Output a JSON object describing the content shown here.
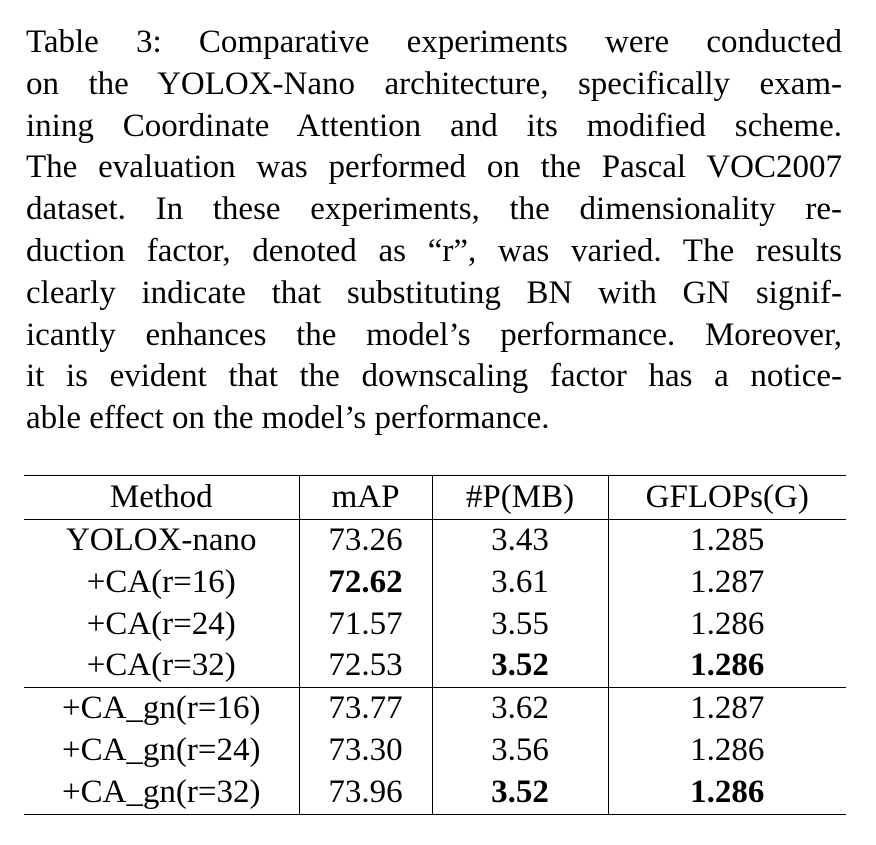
{
  "caption": {
    "lines": [
      "Table 3:  Comparative experiments were conducted",
      "on the YOLOX-Nano architecture, specifically exam-",
      "ining Coordinate Attention and its modified scheme.",
      "The evaluation was performed on the Pascal VOC2007",
      "dataset.  In these experiments, the dimensionality re-",
      "duction factor, denoted as “r”, was varied.  The results",
      "clearly indicate that substituting BN with GN signif-",
      "icantly enhances the model’s performance.  Moreover,",
      "it is evident that the downscaling factor has a notice-",
      "able effect on the model’s performance."
    ]
  },
  "table": {
    "headers": [
      "Method",
      "mAP",
      "#P(MB)",
      "GFLOPs(G)"
    ],
    "rows": [
      [
        "YOLOX-nano",
        "73.26",
        "3.43",
        "1.285"
      ],
      [
        "+CA(r=16)",
        "72.62",
        "3.61",
        "1.287"
      ],
      [
        "+CA(r=24)",
        "71.57",
        "3.55",
        "1.286"
      ],
      [
        "+CA(r=32)",
        "72.53",
        "3.52",
        "1.286"
      ],
      [
        "+CA_gn(r=16)",
        "73.77",
        "3.62",
        "1.287"
      ],
      [
        "+CA_gn(r=24)",
        "73.30",
        "3.56",
        "1.286"
      ],
      [
        "+CA_gn(r=32)",
        "73.96",
        "3.52",
        "1.286"
      ]
    ]
  }
}
